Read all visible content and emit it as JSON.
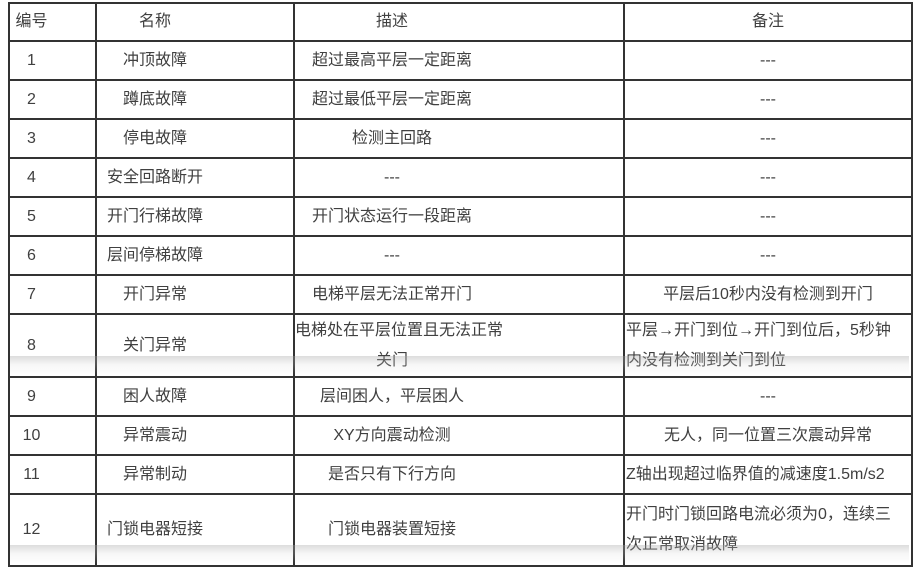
{
  "table": {
    "headers": [
      "编号",
      "名称",
      "描述",
      "备注"
    ],
    "rows": [
      {
        "id": "1",
        "name": "冲顶故障",
        "desc": "超过最高平层一定距离",
        "note": "---"
      },
      {
        "id": "2",
        "name": "蹲底故障",
        "desc": "超过最低平层一定距离",
        "note": "---"
      },
      {
        "id": "3",
        "name": "停电故障",
        "desc": "检测主回路",
        "note": "---"
      },
      {
        "id": "4",
        "name": "安全回路断开",
        "desc": "---",
        "note": "---"
      },
      {
        "id": "5",
        "name": "开门行梯故障",
        "desc": "开门状态运行一段距离",
        "note": "---"
      },
      {
        "id": "6",
        "name": "层间停梯故障",
        "desc": "---",
        "note": "---"
      },
      {
        "id": "7",
        "name": "开门异常",
        "desc": "电梯平层无法正常开门",
        "note": "平层后10秒内没有检测到开门"
      },
      {
        "id": "8",
        "name": "关门异常",
        "desc": "电梯处在平层位置且无法正常\n关门",
        "note": "平层→开门到位→开门到位后，5秒钟\n内没有检测到关门到位",
        "note_align": "left"
      },
      {
        "id": "9",
        "name": "困人故障",
        "desc": "层间困人，平层困人",
        "note": "---"
      },
      {
        "id": "10",
        "name": "异常震动",
        "desc": "XY方向震动检测",
        "note": "无人，同一位置三次震动异常"
      },
      {
        "id": "11",
        "name": "异常制动",
        "desc": "是否只有下行方向",
        "note": "Z轴出现超过临界值的减速度1.5m/s2",
        "note_align": "left"
      },
      {
        "id": "12",
        "name": "门锁电器短接",
        "desc": "门锁电器装置短接",
        "note": "开门时门锁回路电流必须为0，连续三\n次正常取消故障",
        "note_align": "left"
      }
    ]
  },
  "colors": {
    "border": "#333333",
    "text": "#404040",
    "background": "#ffffff"
  }
}
